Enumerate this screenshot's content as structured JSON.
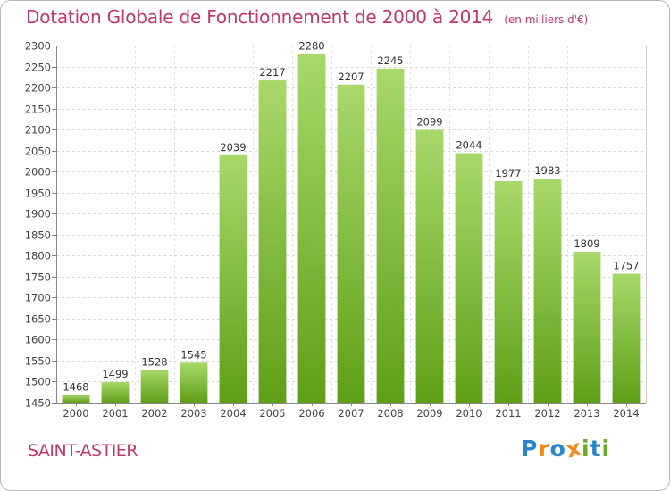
{
  "title": "Dotation Globale de Fonctionnement de 2000 à 2014",
  "subtitle": "(en milliers d'€)",
  "commune": "SAINT-ASTIER",
  "logo": {
    "letters": [
      "P",
      "r",
      "o",
      "x",
      "i",
      "t",
      "i"
    ],
    "colors": [
      "#2a86c8",
      "#f08a1c",
      "#2a86c8",
      "#f08a1c",
      "#6aaa2a",
      "#2a86c8",
      "#6aaa2a"
    ]
  },
  "chart_data": {
    "type": "bar",
    "title": "Dotation Globale de Fonctionnement de 2000 à 2014",
    "subtitle": "(en milliers d'€)",
    "xlabel": "",
    "ylabel": "",
    "categories": [
      "2000",
      "2001",
      "2002",
      "2003",
      "2004",
      "2005",
      "2006",
      "2007",
      "2008",
      "2009",
      "2010",
      "2011",
      "2012",
      "2013",
      "2014"
    ],
    "values": [
      1468,
      1499,
      1528,
      1545,
      2039,
      2217,
      2280,
      2207,
      2245,
      2099,
      2044,
      1977,
      1983,
      1809,
      1757
    ],
    "ylim": [
      1450,
      2300
    ],
    "ytick_step": 50,
    "grid": true,
    "bar_color_light": "#a8d86a",
    "bar_color_dark": "#5f9f18"
  }
}
